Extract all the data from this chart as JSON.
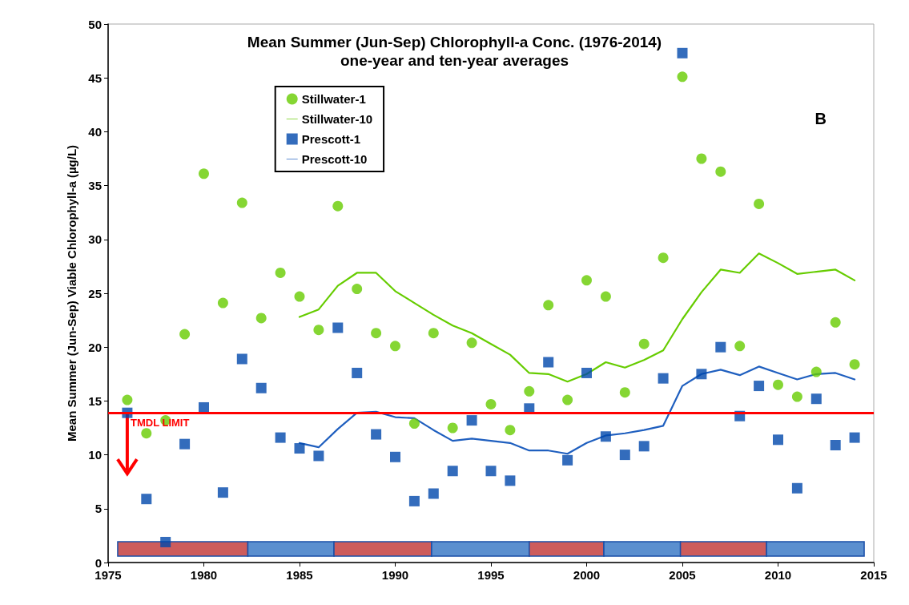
{
  "chart_data": {
    "type": "scatter",
    "title": "Mean Summer (Jun-Sep) Chlorophyll-a Conc. (1976-2014)",
    "subtitle": "one-year and ten-year averages",
    "ylabel": "Mean Summer (Jun-Sep) Viable Chlorophyll-a (µg/L)",
    "annotations": [
      "B"
    ],
    "x": [
      1976,
      1977,
      1978,
      1979,
      1980,
      1981,
      1982,
      1983,
      1984,
      1985,
      1986,
      1987,
      1988,
      1989,
      1990,
      1991,
      1992,
      1993,
      1994,
      1995,
      1996,
      1997,
      1998,
      1999,
      2000,
      2001,
      2002,
      2003,
      2004,
      2005,
      2006,
      2007,
      2008,
      2009,
      2010,
      2011,
      2012,
      2013,
      2014
    ],
    "series": [
      {
        "name": "Stillwater-1",
        "marker": "circle",
        "color": "#66cc00",
        "values": [
          15.1,
          12.0,
          13.2,
          21.2,
          36.1,
          24.1,
          33.4,
          22.7,
          26.9,
          24.7,
          21.6,
          33.1,
          25.4,
          21.3,
          20.1,
          12.9,
          21.3,
          12.5,
          20.4,
          14.7,
          12.3,
          15.9,
          23.9,
          15.1,
          26.2,
          24.7,
          15.8,
          20.3,
          28.3,
          45.1,
          37.5,
          36.3,
          20.1,
          33.3,
          16.5,
          15.4,
          17.7,
          22.3,
          18.4
        ]
      },
      {
        "name": "Stillwater-10",
        "type": "line",
        "marker": "none",
        "line_style": "solid",
        "color": "#66cc00",
        "x": [
          1985,
          1986,
          1987,
          1988,
          1989,
          1990,
          1991,
          1992,
          1993,
          1994,
          1995,
          1996,
          1997,
          1998,
          1999,
          2000,
          2001,
          2002,
          2003,
          2004,
          2005,
          2006,
          2007,
          2008,
          2009,
          2010,
          2011,
          2012,
          2013,
          2014
        ],
        "values": [
          22.8,
          23.5,
          25.7,
          26.9,
          26.9,
          25.2,
          24.1,
          23.0,
          22.0,
          21.3,
          20.3,
          19.3,
          17.6,
          17.5,
          16.8,
          17.5,
          18.6,
          18.1,
          18.8,
          19.7,
          22.6,
          25.1,
          27.2,
          26.9,
          28.7,
          27.8,
          26.8,
          27.0,
          27.2,
          26.2
        ]
      },
      {
        "name": "Prescott-1",
        "marker": "square",
        "color": "#0047ab",
        "values": [
          13.9,
          5.9,
          1.9,
          11.0,
          14.4,
          6.5,
          18.9,
          16.2,
          11.6,
          10.6,
          9.9,
          21.8,
          17.6,
          11.9,
          9.8,
          5.7,
          6.4,
          8.5,
          13.2,
          8.5,
          7.6,
          14.3,
          18.6,
          9.5,
          17.6,
          11.7,
          10.0,
          10.8,
          17.1,
          47.3,
          17.5,
          20.0,
          13.6,
          16.4,
          11.4,
          6.9,
          15.2,
          10.9,
          11.6
        ]
      },
      {
        "name": "Prescott-10",
        "type": "line",
        "marker": "none",
        "line_style": "solid",
        "color": "#1f5fbf",
        "x": [
          1985,
          1986,
          1987,
          1988,
          1989,
          1990,
          1991,
          1992,
          1993,
          1994,
          1995,
          1996,
          1997,
          1998,
          1999,
          2000,
          2001,
          2002,
          2003,
          2004,
          2005,
          2006,
          2007,
          2008,
          2009,
          2010,
          2011,
          2012,
          2013,
          2014
        ],
        "values": [
          11.1,
          10.7,
          12.4,
          13.9,
          14.0,
          13.5,
          13.4,
          12.3,
          11.3,
          11.5,
          11.3,
          11.1,
          10.4,
          10.4,
          10.1,
          11.1,
          11.8,
          12.0,
          12.3,
          12.7,
          16.4,
          17.5,
          17.9,
          17.4,
          18.2,
          17.6,
          17.0,
          17.5,
          17.6,
          17.0
        ]
      }
    ],
    "xlim": [
      1975,
      2015
    ],
    "xticks": [
      1975,
      1980,
      1985,
      1990,
      1995,
      2000,
      2005,
      2010,
      2015
    ],
    "ylim": [
      0,
      50
    ],
    "yticks": [
      0,
      5,
      10,
      15,
      20,
      25,
      30,
      35,
      40,
      45,
      50
    ],
    "ref_lines": [
      {
        "axis": "y",
        "value": 13.9,
        "label": "TMDL LIMIT",
        "color": "#ff0000",
        "line_style": "solid"
      }
    ],
    "legend": "top",
    "grid": false
  }
}
